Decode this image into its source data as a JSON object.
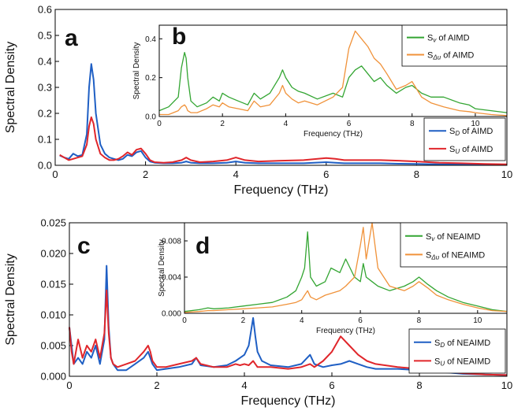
{
  "colors": {
    "blue": "#1f5fc4",
    "red": "#e0262b",
    "green": "#33a532",
    "orange": "#f0923a"
  },
  "chart_data": [
    {
      "id": "a",
      "panel_label": "a",
      "type": "line",
      "xlabel": "Frequency (THz)",
      "ylabel": "Spectral Density",
      "xlim": [
        0,
        10
      ],
      "ylim": [
        0,
        0.6
      ],
      "xticks": [
        0,
        2,
        4,
        6,
        8,
        10
      ],
      "yticks": [
        0.0,
        0.1,
        0.2,
        0.3,
        0.4,
        0.5,
        0.6
      ],
      "ytick_labels": [
        "0.0",
        "0.1",
        "0.2",
        "0.3",
        "0.4",
        "0.5",
        "0.6"
      ],
      "legend_position": "bottom-right",
      "series": [
        {
          "name": "S_D of AIMD",
          "label_main": "S",
          "label_sub": "D",
          "label_rest": " of AIMD",
          "color": "#1f5fc4",
          "x": [
            0.1,
            0.2,
            0.3,
            0.4,
            0.5,
            0.6,
            0.7,
            0.75,
            0.8,
            0.85,
            0.9,
            1.0,
            1.1,
            1.2,
            1.3,
            1.4,
            1.5,
            1.6,
            1.7,
            1.8,
            1.9,
            2.0,
            2.1,
            2.2,
            2.4,
            2.6,
            2.8,
            2.9,
            3.0,
            3.2,
            3.5,
            3.8,
            4.0,
            4.2,
            4.5,
            5.0,
            5.5,
            6.0,
            6.2,
            6.4,
            6.8,
            7.2,
            7.6,
            8.0,
            8.5,
            9.0,
            9.5,
            10.0
          ],
          "y": [
            0.038,
            0.03,
            0.025,
            0.045,
            0.035,
            0.04,
            0.12,
            0.3,
            0.39,
            0.33,
            0.2,
            0.08,
            0.045,
            0.03,
            0.025,
            0.02,
            0.025,
            0.04,
            0.035,
            0.05,
            0.055,
            0.03,
            0.015,
            0.01,
            0.008,
            0.008,
            0.01,
            0.015,
            0.01,
            0.008,
            0.008,
            0.01,
            0.015,
            0.01,
            0.008,
            0.008,
            0.008,
            0.012,
            0.01,
            0.008,
            0.008,
            0.008,
            0.006,
            0.005,
            0.004,
            0.003,
            0.003,
            0.002
          ]
        },
        {
          "name": "S_U of AIMD",
          "label_main": "S",
          "label_sub": "U",
          "label_rest": " of AIMD",
          "color": "#e0262b",
          "x": [
            0.1,
            0.2,
            0.3,
            0.4,
            0.5,
            0.6,
            0.7,
            0.75,
            0.8,
            0.85,
            0.9,
            1.0,
            1.1,
            1.2,
            1.3,
            1.4,
            1.5,
            1.6,
            1.7,
            1.8,
            1.9,
            2.0,
            2.1,
            2.2,
            2.4,
            2.6,
            2.8,
            2.9,
            3.0,
            3.2,
            3.5,
            3.8,
            4.0,
            4.2,
            4.5,
            5.0,
            5.5,
            6.0,
            6.2,
            6.4,
            6.8,
            7.2,
            7.6,
            8.0,
            8.5,
            9.0,
            9.5,
            10.0
          ],
          "y": [
            0.04,
            0.03,
            0.02,
            0.025,
            0.03,
            0.035,
            0.08,
            0.15,
            0.185,
            0.16,
            0.1,
            0.045,
            0.03,
            0.02,
            0.02,
            0.025,
            0.035,
            0.05,
            0.04,
            0.06,
            0.065,
            0.045,
            0.02,
            0.012,
            0.01,
            0.012,
            0.02,
            0.03,
            0.02,
            0.012,
            0.015,
            0.02,
            0.03,
            0.02,
            0.015,
            0.018,
            0.02,
            0.028,
            0.025,
            0.02,
            0.02,
            0.02,
            0.018,
            0.015,
            0.01,
            0.008,
            0.005,
            0.004
          ]
        }
      ]
    },
    {
      "id": "b",
      "panel_label": "b",
      "type": "line",
      "inset_of": "a",
      "xlabel": "Frequency (THz)",
      "ylabel": "Spectral Density",
      "xlim": [
        0,
        11
      ],
      "ylim": [
        0,
        0.47
      ],
      "xticks": [
        0,
        2,
        4,
        6,
        8,
        10
      ],
      "yticks": [
        0.0,
        0.2,
        0.4
      ],
      "ytick_labels": [
        "0.0",
        "0.2",
        "0.4"
      ],
      "legend_position": "top-right",
      "series": [
        {
          "name": "Sv of AIMD",
          "label_main": "S",
          "label_sub": "v",
          "label_rest": " of AIMD",
          "color": "#33a532",
          "x": [
            0.0,
            0.3,
            0.6,
            0.7,
            0.8,
            0.85,
            0.9,
            1.0,
            1.2,
            1.5,
            1.7,
            1.9,
            2.0,
            2.2,
            2.5,
            2.8,
            3.0,
            3.2,
            3.5,
            3.8,
            3.9,
            4.0,
            4.2,
            4.4,
            4.6,
            5.0,
            5.5,
            5.8,
            6.0,
            6.2,
            6.4,
            6.6,
            6.8,
            7.0,
            7.2,
            7.5,
            7.8,
            8.0,
            8.3,
            8.6,
            9.0,
            9.5,
            9.8,
            10.0,
            10.5,
            11.0
          ],
          "y": [
            0.03,
            0.05,
            0.1,
            0.25,
            0.33,
            0.3,
            0.2,
            0.08,
            0.05,
            0.07,
            0.1,
            0.08,
            0.12,
            0.1,
            0.08,
            0.06,
            0.12,
            0.09,
            0.12,
            0.2,
            0.24,
            0.2,
            0.15,
            0.13,
            0.12,
            0.09,
            0.12,
            0.1,
            0.2,
            0.24,
            0.26,
            0.22,
            0.18,
            0.2,
            0.16,
            0.12,
            0.15,
            0.16,
            0.12,
            0.1,
            0.1,
            0.07,
            0.06,
            0.04,
            0.03,
            0.02
          ]
        },
        {
          "name": "SΔu of AIMD",
          "label_main": "S",
          "label_sub": "Δu",
          "label_rest": "  of AIMD",
          "color": "#f0923a",
          "x": [
            0.0,
            0.3,
            0.6,
            0.7,
            0.8,
            0.85,
            0.9,
            1.0,
            1.2,
            1.5,
            1.7,
            1.9,
            2.0,
            2.2,
            2.5,
            2.8,
            3.0,
            3.2,
            3.5,
            3.8,
            3.9,
            4.0,
            4.2,
            4.4,
            4.6,
            5.0,
            5.5,
            5.8,
            6.0,
            6.2,
            6.4,
            6.6,
            6.8,
            7.0,
            7.2,
            7.5,
            7.8,
            8.0,
            8.3,
            8.6,
            9.0,
            9.5,
            9.8,
            10.0,
            10.5,
            11.0
          ],
          "y": [
            0.01,
            0.01,
            0.03,
            0.05,
            0.06,
            0.05,
            0.03,
            0.02,
            0.02,
            0.04,
            0.06,
            0.05,
            0.07,
            0.05,
            0.04,
            0.03,
            0.08,
            0.05,
            0.06,
            0.12,
            0.16,
            0.12,
            0.09,
            0.07,
            0.08,
            0.06,
            0.1,
            0.15,
            0.35,
            0.44,
            0.4,
            0.36,
            0.3,
            0.27,
            0.22,
            0.14,
            0.16,
            0.18,
            0.1,
            0.07,
            0.05,
            0.03,
            0.025,
            0.02,
            0.01,
            0.005
          ]
        }
      ]
    },
    {
      "id": "c",
      "panel_label": "c",
      "type": "line",
      "xlabel": "Frequency (THz)",
      "ylabel": "Spectral Density",
      "xlim": [
        0,
        10
      ],
      "ylim": [
        0,
        0.025
      ],
      "xticks": [
        0,
        2,
        4,
        6,
        8,
        10
      ],
      "yticks": [
        0.0,
        0.005,
        0.01,
        0.015,
        0.02,
        0.025
      ],
      "ytick_labels": [
        "0.000",
        "0.005",
        "0.010",
        "0.015",
        "0.020",
        "0.025"
      ],
      "legend_position": "bottom-right",
      "series": [
        {
          "name": "S_D of NEAIMD",
          "label_main": "S",
          "label_sub": "D",
          "label_rest": " of NEAIMD",
          "color": "#1f5fc4",
          "x": [
            0.0,
            0.05,
            0.1,
            0.2,
            0.3,
            0.4,
            0.5,
            0.6,
            0.7,
            0.8,
            0.85,
            0.9,
            0.95,
            1.0,
            1.1,
            1.3,
            1.5,
            1.7,
            1.8,
            1.85,
            1.9,
            2.0,
            2.2,
            2.5,
            2.8,
            2.9,
            3.0,
            3.3,
            3.6,
            3.8,
            3.9,
            4.0,
            4.1,
            4.2,
            4.25,
            4.3,
            4.4,
            4.6,
            5.0,
            5.3,
            5.5,
            5.6,
            5.8,
            6.0,
            6.2,
            6.4,
            6.6,
            6.8,
            7.0,
            7.5,
            8.0,
            8.5,
            9.0,
            9.5,
            10.0
          ],
          "y": [
            0.008,
            0.005,
            0.002,
            0.003,
            0.002,
            0.004,
            0.003,
            0.005,
            0.002,
            0.006,
            0.018,
            0.008,
            0.003,
            0.002,
            0.001,
            0.001,
            0.002,
            0.003,
            0.004,
            0.003,
            0.002,
            0.001,
            0.0012,
            0.0015,
            0.002,
            0.003,
            0.0018,
            0.0015,
            0.0018,
            0.0025,
            0.003,
            0.0035,
            0.005,
            0.0095,
            0.0065,
            0.004,
            0.0025,
            0.0018,
            0.0015,
            0.002,
            0.0035,
            0.002,
            0.0015,
            0.0018,
            0.002,
            0.0025,
            0.002,
            0.0015,
            0.0012,
            0.0012,
            0.001,
            0.0007,
            0.0004,
            0.0003,
            0.0002
          ]
        },
        {
          "name": "S_U of NEAIMD",
          "label_main": "S",
          "label_sub": "U",
          "label_rest": " of NEAIMD",
          "color": "#e0262b",
          "x": [
            0.0,
            0.05,
            0.1,
            0.2,
            0.3,
            0.4,
            0.5,
            0.6,
            0.7,
            0.8,
            0.85,
            0.9,
            0.95,
            1.0,
            1.1,
            1.3,
            1.5,
            1.7,
            1.8,
            1.85,
            1.9,
            2.0,
            2.2,
            2.5,
            2.8,
            2.9,
            3.0,
            3.3,
            3.6,
            3.8,
            3.9,
            4.0,
            4.1,
            4.2,
            4.25,
            4.3,
            4.4,
            4.6,
            5.0,
            5.3,
            5.5,
            5.6,
            5.8,
            6.0,
            6.2,
            6.4,
            6.6,
            6.8,
            7.0,
            7.5,
            8.0,
            8.5,
            9.0,
            9.5,
            10.0
          ],
          "y": [
            0.008,
            0.004,
            0.002,
            0.006,
            0.003,
            0.005,
            0.004,
            0.006,
            0.003,
            0.007,
            0.014,
            0.007,
            0.003,
            0.002,
            0.0015,
            0.002,
            0.0025,
            0.004,
            0.005,
            0.004,
            0.0025,
            0.0015,
            0.0015,
            0.002,
            0.0025,
            0.003,
            0.002,
            0.0015,
            0.0015,
            0.002,
            0.0018,
            0.002,
            0.0018,
            0.0025,
            0.002,
            0.0015,
            0.0015,
            0.0015,
            0.0012,
            0.0015,
            0.002,
            0.0015,
            0.0025,
            0.004,
            0.0065,
            0.005,
            0.0035,
            0.0025,
            0.002,
            0.0015,
            0.0012,
            0.0008,
            0.0005,
            0.0003,
            0.0002
          ]
        }
      ]
    },
    {
      "id": "d",
      "panel_label": "d",
      "type": "line",
      "inset_of": "c",
      "xlabel": "Frequency (THz)",
      "ylabel": "Spectral Density",
      "xlim": [
        0,
        11
      ],
      "ylim": [
        0,
        0.01
      ],
      "xticks": [
        0,
        2,
        4,
        6,
        8,
        10
      ],
      "yticks": [
        0.0,
        0.004,
        0.008
      ],
      "ytick_labels": [
        "0.000",
        "0.004",
        "0.008"
      ],
      "legend_position": "top-right",
      "series": [
        {
          "name": "Sv of NEAIMD",
          "label_main": "S",
          "label_sub": "v",
          "label_rest": " of NEAIMD",
          "color": "#33a532",
          "x": [
            0.0,
            0.5,
            0.8,
            1.0,
            1.5,
            2.0,
            2.5,
            3.0,
            3.5,
            3.8,
            4.0,
            4.1,
            4.2,
            4.3,
            4.5,
            4.8,
            5.0,
            5.3,
            5.5,
            5.8,
            6.0,
            6.1,
            6.2,
            6.4,
            6.6,
            7.0,
            7.5,
            7.8,
            8.0,
            8.3,
            8.6,
            9.0,
            9.5,
            10.0,
            10.5,
            11.0
          ],
          "y": [
            0.0002,
            0.0004,
            0.0006,
            0.0005,
            0.0006,
            0.0008,
            0.001,
            0.0012,
            0.0018,
            0.0025,
            0.004,
            0.005,
            0.009,
            0.004,
            0.003,
            0.0035,
            0.005,
            0.0045,
            0.006,
            0.004,
            0.0035,
            0.0055,
            0.004,
            0.0035,
            0.003,
            0.0025,
            0.003,
            0.0035,
            0.004,
            0.0032,
            0.0025,
            0.0018,
            0.0012,
            0.0008,
            0.0004,
            0.0002
          ]
        },
        {
          "name": "SΔu of NEAIMD",
          "label_main": "S",
          "label_sub": "Δu",
          "label_rest": " of NEAIMD",
          "color": "#f0923a",
          "x": [
            0.0,
            0.5,
            0.8,
            1.0,
            1.5,
            2.0,
            2.5,
            3.0,
            3.5,
            3.8,
            4.0,
            4.1,
            4.2,
            4.3,
            4.5,
            4.8,
            5.0,
            5.3,
            5.5,
            5.8,
            6.0,
            6.1,
            6.2,
            6.4,
            6.6,
            7.0,
            7.5,
            7.8,
            8.0,
            8.3,
            8.6,
            9.0,
            9.5,
            10.0,
            10.5,
            11.0
          ],
          "y": [
            0.0001,
            0.0002,
            0.0003,
            0.0003,
            0.0004,
            0.0005,
            0.0006,
            0.0007,
            0.001,
            0.0012,
            0.0015,
            0.002,
            0.0025,
            0.0018,
            0.0015,
            0.002,
            0.0022,
            0.0025,
            0.003,
            0.004,
            0.0075,
            0.0095,
            0.006,
            0.01,
            0.005,
            0.003,
            0.0025,
            0.003,
            0.0035,
            0.0028,
            0.002,
            0.0015,
            0.001,
            0.0006,
            0.0003,
            0.0002
          ]
        }
      ]
    }
  ]
}
